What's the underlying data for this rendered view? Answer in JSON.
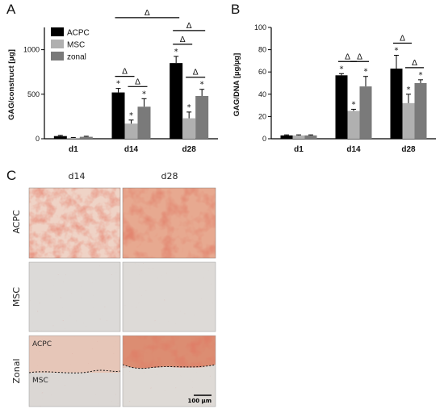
{
  "panels": {
    "a": "A",
    "b": "B",
    "c": "C"
  },
  "colors": {
    "acpc": "#000000",
    "msc": "#b0b0b0",
    "zonal": "#7a7a7a"
  },
  "chart_data": [
    {
      "type": "bar",
      "panel": "A",
      "ylabel": "GAG/construct [µg]",
      "ylim": [
        0,
        1250
      ],
      "yticks": [
        0,
        500,
        1000
      ],
      "categories": [
        "d1",
        "d14",
        "d28"
      ],
      "legend": {
        "placement": "top-left"
      },
      "series": [
        {
          "name": "ACPC",
          "values": [
            30,
            520,
            850
          ],
          "errors": [
            8,
            45,
            75
          ]
        },
        {
          "name": "MSC",
          "values": [
            10,
            170,
            230
          ],
          "errors": [
            4,
            40,
            70
          ]
        },
        {
          "name": "zonal",
          "values": [
            22,
            360,
            480
          ],
          "errors": [
            6,
            90,
            75
          ]
        }
      ],
      "significance": {
        "star": "*",
        "delta": "Δ"
      }
    },
    {
      "type": "bar",
      "panel": "B",
      "ylabel": "GAG/DNA [µg/µg]",
      "ylim": [
        0,
        100
      ],
      "yticks": [
        0,
        20,
        40,
        60,
        80,
        100
      ],
      "categories": [
        "d1",
        "d14",
        "d28"
      ],
      "series": [
        {
          "name": "ACPC",
          "values": [
            3,
            57,
            63
          ],
          "errors": [
            0.5,
            1.5,
            12
          ]
        },
        {
          "name": "MSC",
          "values": [
            3,
            25,
            32
          ],
          "errors": [
            0.5,
            1.5,
            8
          ]
        },
        {
          "name": "zonal",
          "values": [
            3,
            47,
            50
          ],
          "errors": [
            0.5,
            9,
            3
          ]
        }
      ],
      "significance": {
        "star": "*",
        "delta": "Δ"
      }
    }
  ],
  "histology": {
    "columns": [
      "d14",
      "d28"
    ],
    "rows": [
      "ACPC",
      "MSC",
      "Zonal"
    ],
    "zonal_labels": {
      "top": "ACPC",
      "bottom": "MSC"
    },
    "scale_bar": "100 µm"
  }
}
